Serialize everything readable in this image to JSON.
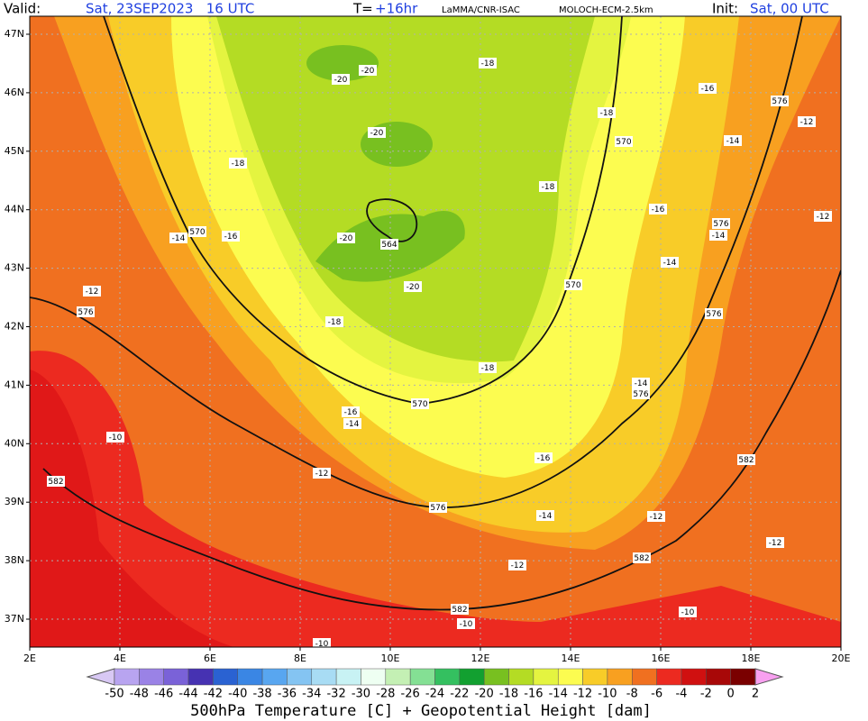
{
  "header": {
    "valid_label": "Valid:",
    "valid_time": "Sat, 23SEP2023   16 UTC",
    "lead_label": "T=",
    "lead_time": "+16hr",
    "source": "LaMMA/CNR-ISAC",
    "model": "MOLOCH-ECM-2.5km",
    "init_label": "Init:",
    "init_time": "Sat, 00 UTC"
  },
  "map": {
    "lat_labels": [
      "47N",
      "46N",
      "45N",
      "44N",
      "43N",
      "42N",
      "41N",
      "40N",
      "39N",
      "38N",
      "37N"
    ],
    "lon_labels": [
      "2E",
      "4E",
      "6E",
      "8E",
      "10E",
      "12E",
      "14E",
      "16E",
      "18E",
      "20E"
    ],
    "labels": [
      "-18",
      "-20",
      "-20",
      "-16",
      "576",
      "-12",
      "-18",
      "570",
      "-14",
      "-20",
      "-18",
      "-18",
      "-16",
      "576",
      "-12",
      "-14",
      "570",
      "-16",
      "-20",
      "564",
      "-14",
      "-14",
      "-12",
      "-20",
      "570",
      "576",
      "576",
      "-18",
      "-18",
      "-14",
      "576",
      "570",
      "-16",
      "-14",
      "-10",
      "-16",
      "582",
      "-12",
      "582",
      "576",
      "-14",
      "-12",
      "-12",
      "582",
      "-12",
      "582",
      "-10",
      "-10",
      "-10"
    ]
  },
  "colorbar": {
    "ticks": [
      -50,
      -48,
      -46,
      -44,
      -42,
      -40,
      -38,
      -36,
      -34,
      -32,
      -30,
      -28,
      -26,
      -24,
      -22,
      -20,
      -18,
      -16,
      -14,
      -12,
      -10,
      -8,
      -6,
      -4,
      -2,
      0,
      2
    ],
    "colors": [
      "#d8c8f4",
      "#b8a4f0",
      "#9a82e6",
      "#7a62d8",
      "#4632b2",
      "#2a62d2",
      "#3a86e4",
      "#58a6f0",
      "#84c4f2",
      "#a8dcf4",
      "#c8f2f4",
      "#eefff2",
      "#c4f0b4",
      "#84e094",
      "#34c060",
      "#12a030",
      "#78c020",
      "#b4dc24",
      "#e4f440",
      "#fcfc50",
      "#f8cc28",
      "#f8a020",
      "#f07020",
      "#ec2a20",
      "#d01010",
      "#a80808",
      "#7a0000",
      "#901090",
      "#e020e0",
      "#f8a0f0"
    ],
    "title": "500hPa Temperature [C] + Geopotential Height [dam]"
  }
}
